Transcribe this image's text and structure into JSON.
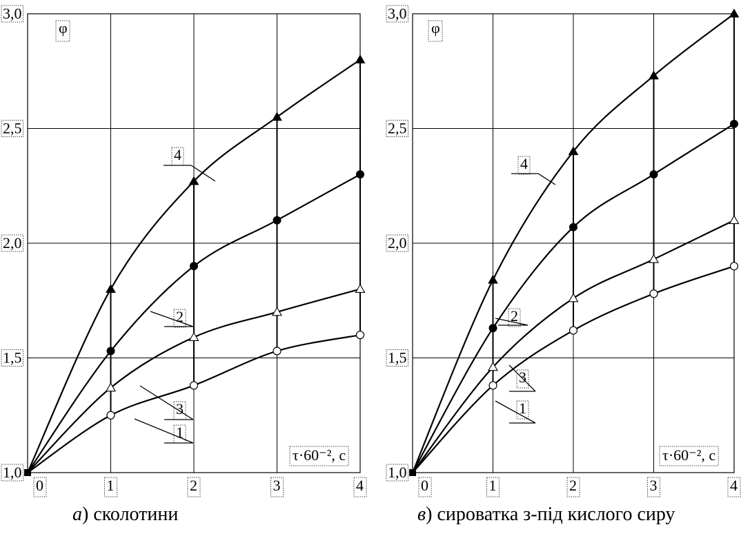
{
  "chart_data": [
    {
      "type": "line",
      "caption_letter": "а",
      "caption_rest": ") сколотини",
      "ylabel": "φ",
      "xlabel": "τ·60⁻², с",
      "xlim": [
        0,
        4
      ],
      "ylim": [
        1.0,
        3.0
      ],
      "xticks": [
        "0",
        "1",
        "2",
        "3",
        "4"
      ],
      "yticks": [
        "1,0",
        "1,5",
        "2,0",
        "2,5",
        "3,0"
      ],
      "grid": true,
      "series": [
        {
          "name": "1",
          "marker": "open-circle",
          "x": [
            0,
            1,
            2,
            3,
            4
          ],
          "y": [
            1.0,
            1.25,
            1.38,
            1.53,
            1.6
          ]
        },
        {
          "name": "2",
          "marker": "filled-circle",
          "x": [
            0,
            1,
            2,
            3,
            4
          ],
          "y": [
            1.0,
            1.53,
            1.9,
            2.1,
            2.3
          ]
        },
        {
          "name": "3",
          "marker": "open-triangle",
          "x": [
            0,
            1,
            2,
            3,
            4
          ],
          "y": [
            1.0,
            1.37,
            1.59,
            1.7,
            1.8
          ]
        },
        {
          "name": "4",
          "marker": "filled-triangle",
          "x": [
            0,
            1,
            2,
            3,
            4
          ],
          "y": [
            1.0,
            1.8,
            2.27,
            2.55,
            2.8
          ]
        }
      ]
    },
    {
      "type": "line",
      "caption_letter": "в",
      "caption_rest": ") сироватка з-під кислого сиру",
      "ylabel": "φ",
      "xlabel": "τ·60⁻², с",
      "xlim": [
        0,
        4
      ],
      "ylim": [
        1.0,
        3.0
      ],
      "xticks": [
        "0",
        "1",
        "2",
        "3",
        "4"
      ],
      "yticks": [
        "1,0",
        "1,5",
        "2,0",
        "2,5",
        "3,0"
      ],
      "grid": true,
      "series": [
        {
          "name": "1",
          "marker": "open-circle",
          "x": [
            0,
            1,
            2,
            3,
            4
          ],
          "y": [
            1.0,
            1.38,
            1.62,
            1.78,
            1.9
          ]
        },
        {
          "name": "2",
          "marker": "filled-circle",
          "x": [
            0,
            1,
            2,
            3,
            4
          ],
          "y": [
            1.0,
            1.63,
            2.07,
            2.3,
            2.52
          ]
        },
        {
          "name": "3",
          "marker": "open-triangle",
          "x": [
            0,
            1,
            2,
            3,
            4
          ],
          "y": [
            1.0,
            1.46,
            1.76,
            1.93,
            2.1
          ]
        },
        {
          "name": "4",
          "marker": "filled-triangle",
          "x": [
            0,
            1,
            2,
            3,
            4
          ],
          "y": [
            1.0,
            1.84,
            2.4,
            2.73,
            3.0
          ]
        }
      ]
    }
  ]
}
